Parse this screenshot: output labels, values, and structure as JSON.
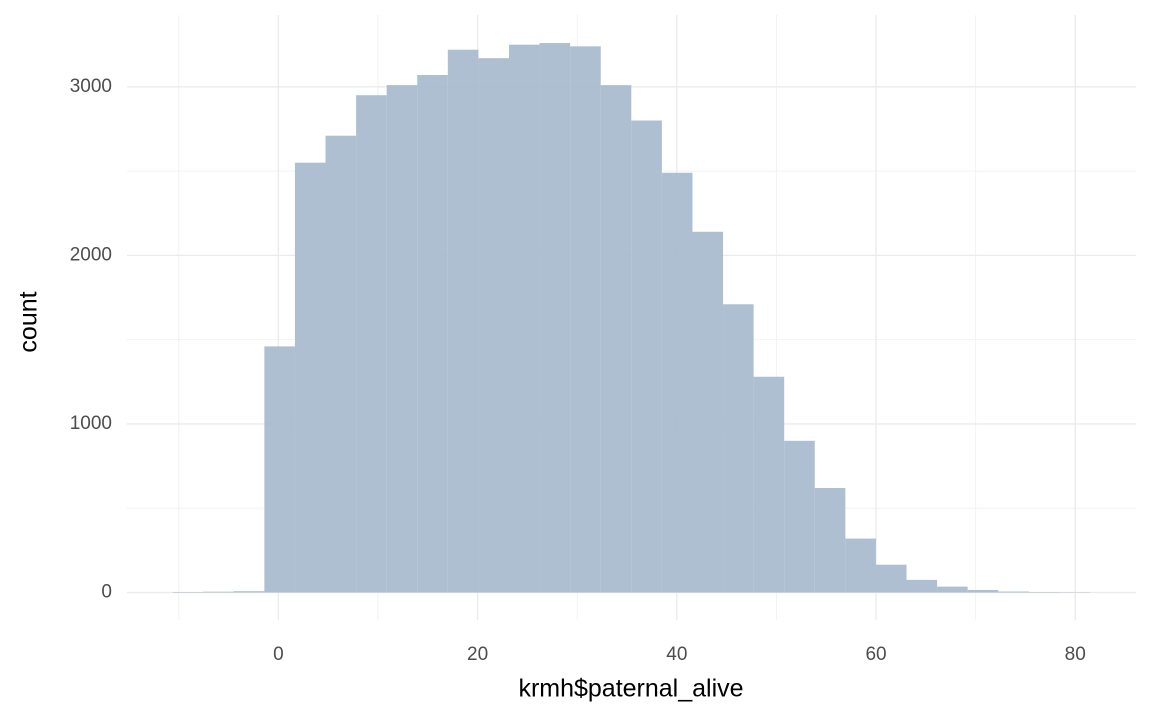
{
  "chart_data": {
    "type": "histogram",
    "x_label": "krmh$paternal_alive",
    "y_label": "count",
    "bins": [
      -10.62,
      -7.55,
      -4.48,
      -1.41,
      1.66,
      4.73,
      7.8,
      10.87,
      13.94,
      17.01,
      20.08,
      23.15,
      26.22,
      29.29,
      32.36,
      35.43,
      38.5,
      41.57,
      44.64,
      47.71,
      50.78,
      53.85,
      56.92,
      59.99,
      63.06,
      66.13,
      69.2,
      72.27,
      75.34,
      78.41,
      81.48
    ],
    "values": [
      3,
      5,
      8,
      1460,
      2550,
      2710,
      2950,
      3010,
      3070,
      3220,
      3170,
      3250,
      3260,
      3240,
      3010,
      2800,
      2490,
      2140,
      1710,
      1280,
      900,
      620,
      320,
      165,
      75,
      35,
      15,
      6,
      3,
      2
    ],
    "color": "#a9bccf",
    "xlim": [
      -15.2,
      86.1
    ],
    "xticks": [
      0,
      20,
      40,
      60,
      80
    ],
    "ylim": [
      -163,
      3426
    ],
    "yticks": [
      0,
      1000,
      2000,
      3000
    ],
    "grid": true
  }
}
